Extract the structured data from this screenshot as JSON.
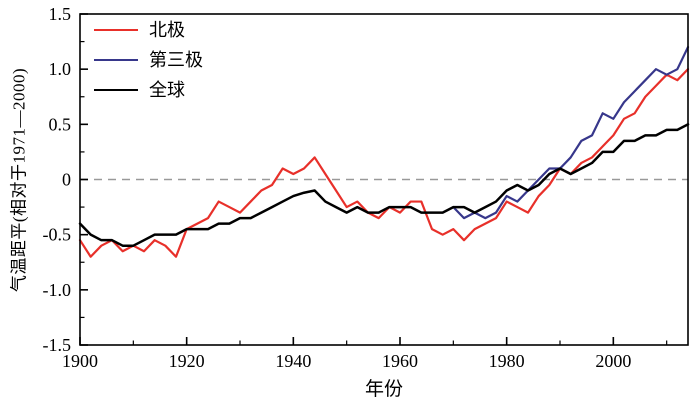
{
  "chart_data": {
    "type": "line",
    "title": "",
    "xlabel": "年份",
    "ylabel": "气温距平(相对于1971—2000)",
    "xlim": [
      1900,
      2014
    ],
    "ylim": [
      -1.5,
      1.5
    ],
    "grid": false,
    "legend_position": "top-left",
    "x_ticks": {
      "values": [
        1900,
        1920,
        1940,
        1960,
        1980,
        2000
      ],
      "labels": [
        "1900",
        "1920",
        "1940",
        "1960",
        "1980",
        "2000"
      ],
      "minor": [
        1910,
        1930,
        1950,
        1970,
        1990,
        2010
      ]
    },
    "y_ticks": {
      "values": [
        1.5,
        1.0,
        0.5,
        0,
        -0.5,
        -1.0,
        -1.5
      ],
      "labels": [
        "1.5",
        "1.0",
        "0.5",
        "0",
        "-0.5",
        "-1.0",
        "-1.5"
      ],
      "minor": [
        1.25,
        0.75,
        0.25,
        -0.25,
        -0.75,
        -1.25
      ]
    },
    "zero_line": {
      "y": 0,
      "style": "dashed",
      "color": "#999999"
    },
    "series": [
      {
        "name": "北极",
        "color": "#e8302a",
        "line_width": 2.2,
        "x_start": 1900,
        "x_step": 2,
        "y": [
          -0.55,
          -0.7,
          -0.6,
          -0.55,
          -0.65,
          -0.6,
          -0.65,
          -0.55,
          -0.6,
          -0.7,
          -0.45,
          -0.4,
          -0.35,
          -0.2,
          -0.25,
          -0.3,
          -0.2,
          -0.1,
          -0.05,
          0.1,
          0.05,
          0.1,
          0.2,
          0.05,
          -0.1,
          -0.25,
          -0.2,
          -0.3,
          -0.35,
          -0.25,
          -0.3,
          -0.2,
          -0.2,
          -0.45,
          -0.5,
          -0.45,
          -0.55,
          -0.45,
          -0.4,
          -0.35,
          -0.2,
          -0.25,
          -0.3,
          -0.15,
          -0.05,
          0.1,
          0.05,
          0.15,
          0.2,
          0.3,
          0.4,
          0.55,
          0.6,
          0.75,
          0.85,
          0.95,
          0.9,
          1.0
        ]
      },
      {
        "name": "第三极",
        "color": "#37378b",
        "line_width": 2.2,
        "x_start": 1970,
        "x_step": 2,
        "y": [
          -0.25,
          -0.35,
          -0.3,
          -0.35,
          -0.3,
          -0.15,
          -0.2,
          -0.1,
          0.0,
          0.1,
          0.1,
          0.2,
          0.35,
          0.4,
          0.6,
          0.55,
          0.7,
          0.8,
          0.9,
          1.0,
          0.95,
          1.0,
          1.2
        ]
      },
      {
        "name": "全球",
        "color": "#000000",
        "line_width": 2.5,
        "x_start": 1900,
        "x_step": 2,
        "y": [
          -0.4,
          -0.5,
          -0.55,
          -0.55,
          -0.6,
          -0.6,
          -0.55,
          -0.5,
          -0.5,
          -0.5,
          -0.45,
          -0.45,
          -0.45,
          -0.4,
          -0.4,
          -0.35,
          -0.35,
          -0.3,
          -0.25,
          -0.2,
          -0.15,
          -0.12,
          -0.1,
          -0.2,
          -0.25,
          -0.3,
          -0.25,
          -0.3,
          -0.3,
          -0.25,
          -0.25,
          -0.25,
          -0.3,
          -0.3,
          -0.3,
          -0.25,
          -0.25,
          -0.3,
          -0.25,
          -0.2,
          -0.1,
          -0.05,
          -0.1,
          -0.05,
          0.05,
          0.1,
          0.05,
          0.1,
          0.15,
          0.25,
          0.25,
          0.35,
          0.35,
          0.4,
          0.4,
          0.45,
          0.45,
          0.5
        ]
      }
    ]
  }
}
